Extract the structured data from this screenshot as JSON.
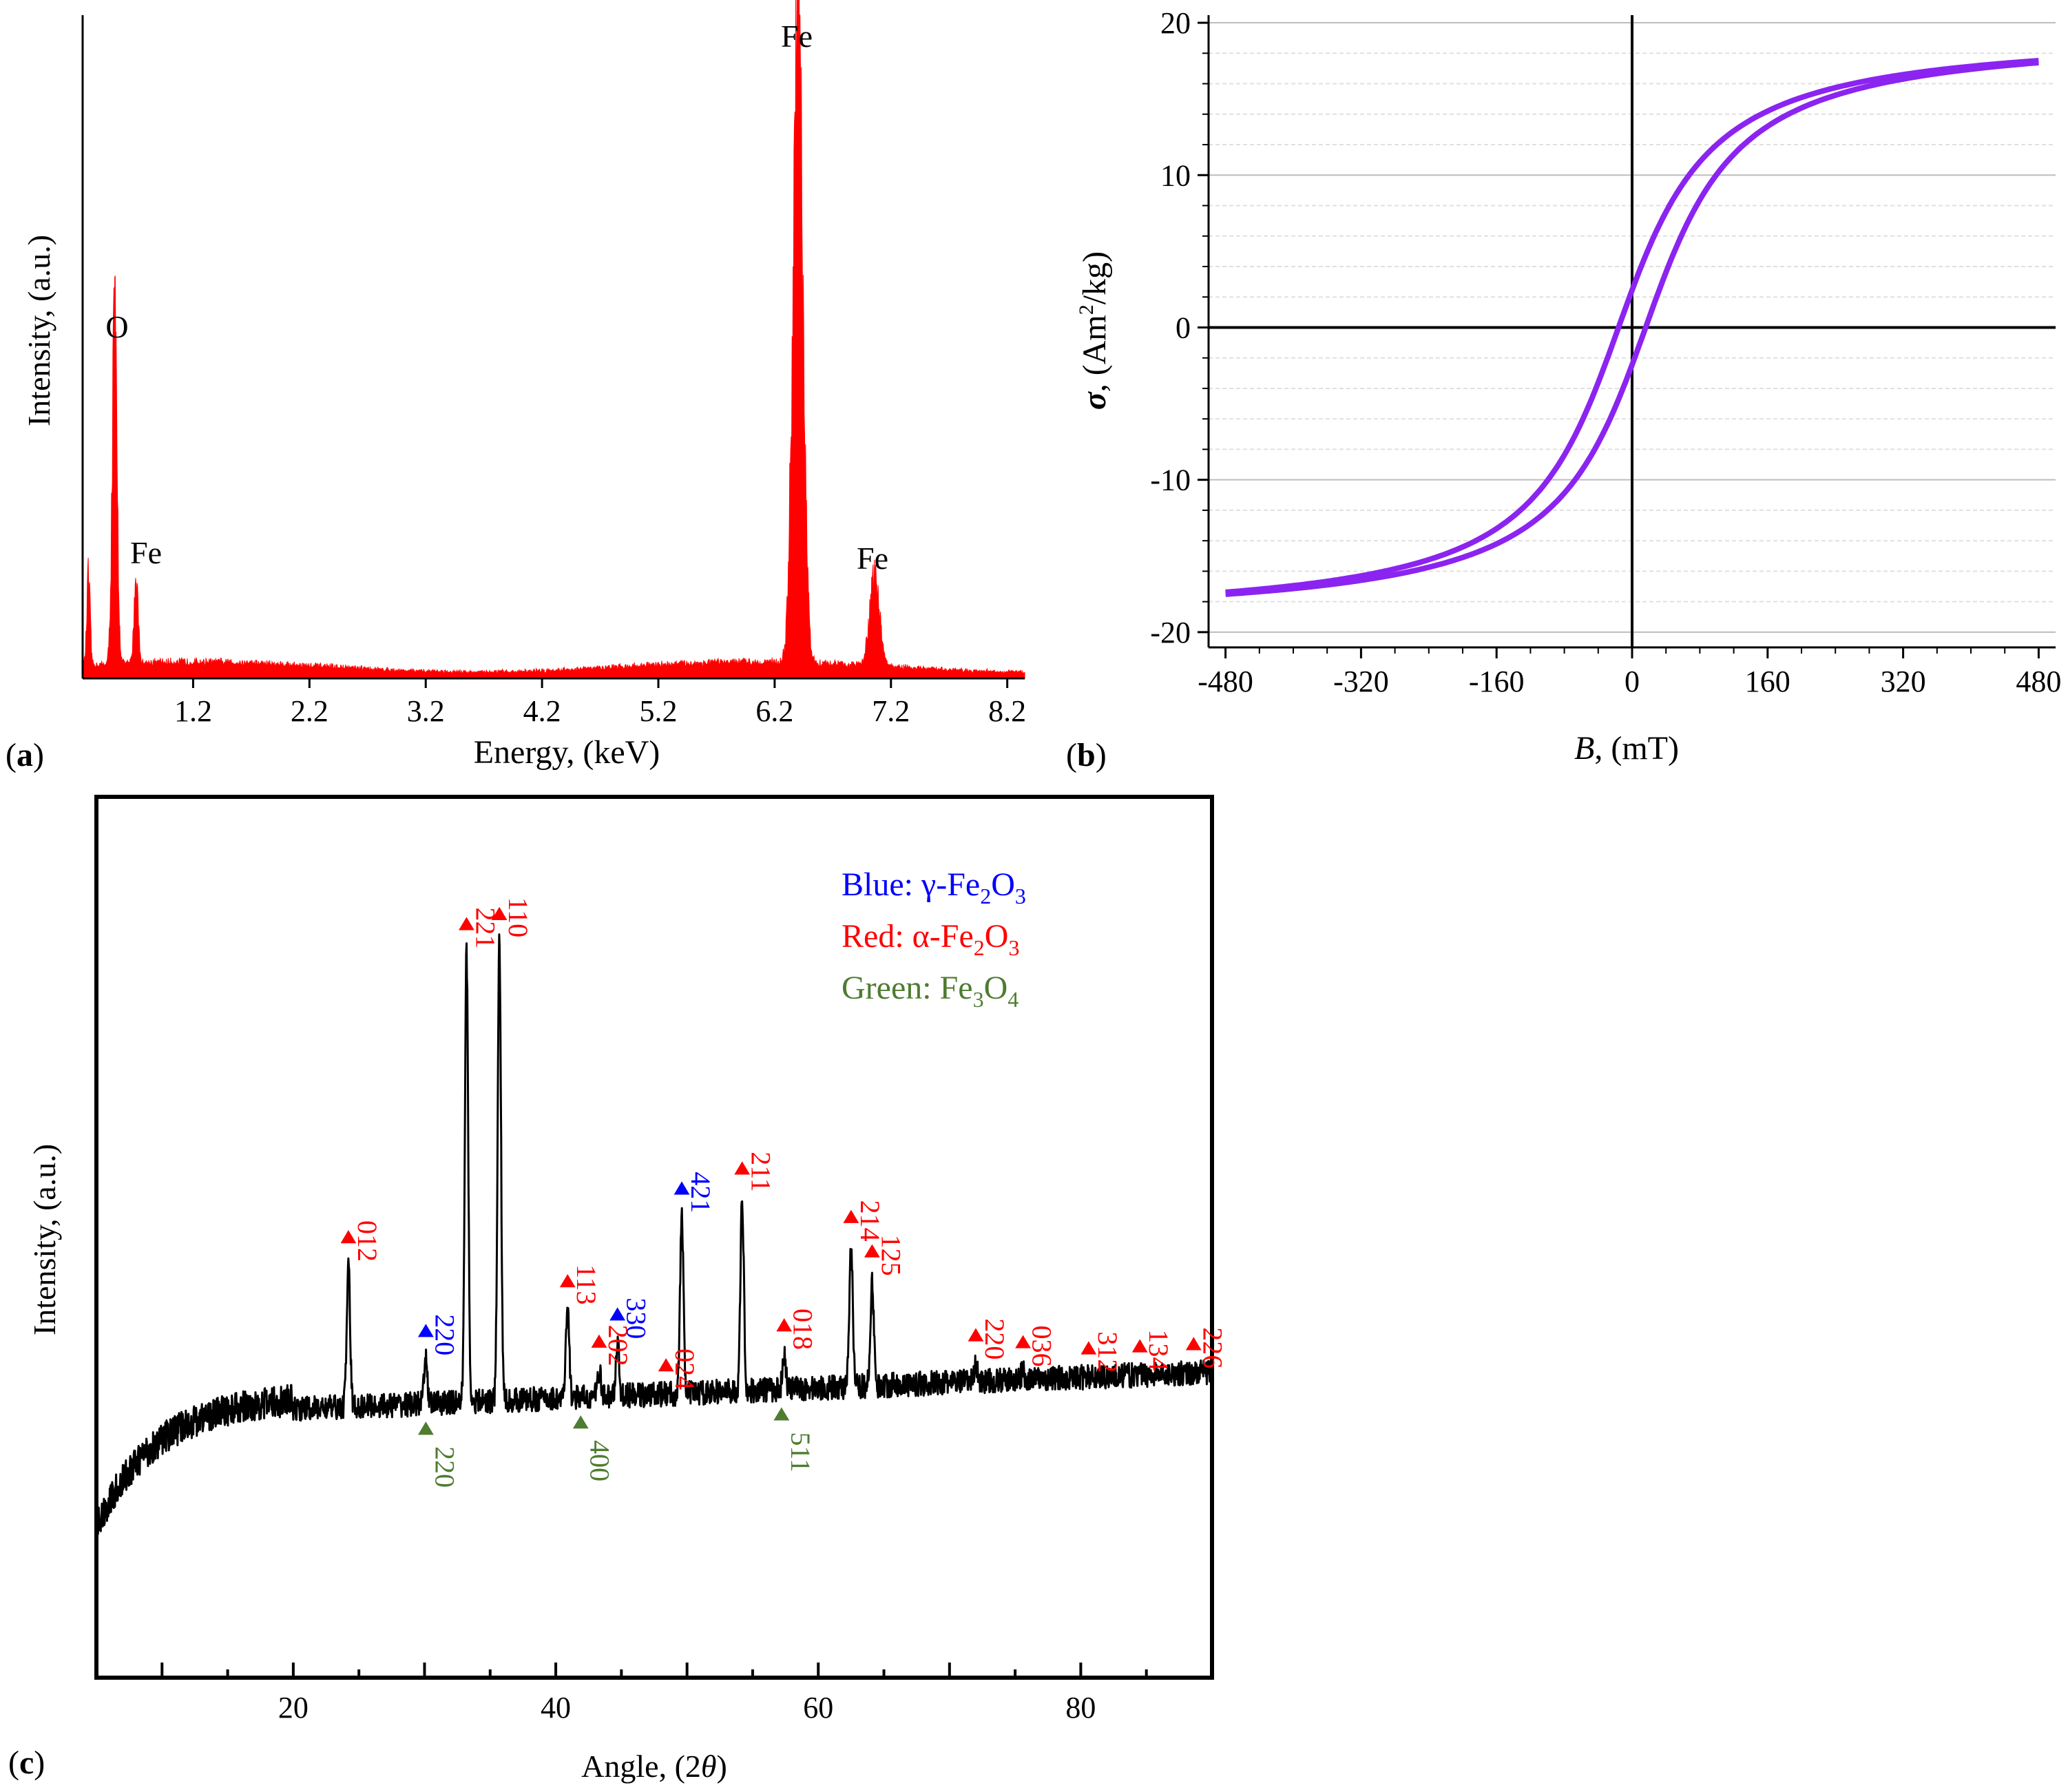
{
  "chart_data": [
    {
      "id": "a",
      "type": "area",
      "panel_label": "(a)",
      "title": "",
      "xlabel": "Energy, (keV)",
      "ylabel": "Intensity, (a.u.)",
      "xlim": [
        0.25,
        8.35
      ],
      "ylim": [
        0,
        1.0
      ],
      "xticks": [
        "1.2",
        "2.2",
        "3.2",
        "4.2",
        "5.2",
        "6.2",
        "7.2",
        "8.2"
      ],
      "xtick_values": [
        1.2,
        2.2,
        3.2,
        4.2,
        5.2,
        6.2,
        7.2,
        8.2
      ],
      "series": [
        {
          "name": "EDS spectrum",
          "color": "#ff0000"
        }
      ],
      "peaks": [
        {
          "label": "O",
          "energy": 0.525,
          "height": 0.5,
          "width": 0.03
        },
        {
          "label": "Fe",
          "energy": 0.71,
          "height": 0.13,
          "width": 0.025
        },
        {
          "label": "Fe",
          "energy": 6.4,
          "height": 0.93,
          "width": 0.06
        },
        {
          "label": "Fe",
          "energy": 7.06,
          "height": 0.13,
          "width": 0.06
        }
      ],
      "edge_peak": {
        "energy": 0.3,
        "height": 0.13,
        "width": 0.02
      },
      "background_level": 0.015,
      "annotations": [
        "O",
        "Fe",
        "Fe",
        "Fe"
      ]
    },
    {
      "id": "b",
      "type": "line",
      "panel_label": "(b)",
      "title": "",
      "xlabel_italic": "B",
      "xlabel_rest": ", (mT)",
      "ylabel_symbol": "σ",
      "ylabel_rest": ", (Am",
      "ylabel_sup": "2",
      "ylabel_end": "/kg)",
      "xlim": [
        -500,
        500
      ],
      "ylim": [
        -21,
        20.5
      ],
      "xticks": [
        "-480",
        "-320",
        "-160",
        "0",
        "160",
        "320",
        "480"
      ],
      "xtick_values": [
        -480,
        -320,
        -160,
        0,
        160,
        320,
        480
      ],
      "yticks": [
        "20",
        "10",
        "0",
        "-10",
        "-20"
      ],
      "ytick_values": [
        20,
        10,
        0,
        -10,
        -20
      ],
      "grid": true,
      "series": [
        {
          "name": "Hysteresis loop",
          "color": "#8b24f0"
        }
      ],
      "saturation_magnetization": 19.5,
      "coercivity_mT": 16,
      "remanence": 5,
      "field_range": [
        -480,
        480
      ]
    },
    {
      "id": "c",
      "type": "line",
      "panel_label": "(c)",
      "title": "",
      "xlabel_text": "Angle, (2",
      "xlabel_theta": "θ",
      "xlabel_close": ")",
      "ylabel": "Intensity, (a.u.)",
      "xlim": [
        5,
        90
      ],
      "ylim": [
        0,
        1.0
      ],
      "xticks": [
        "20",
        "40",
        "60",
        "80"
      ],
      "xtick_values": [
        20,
        40,
        60,
        80
      ],
      "series": [
        {
          "name": "XRD pattern",
          "color": "#000000"
        }
      ],
      "legend": {
        "placement": "top-right",
        "entries": [
          {
            "prefix": "Blue: γ-Fe",
            "sub1": "2",
            "mid": "O",
            "sub2": "3",
            "color": "#0000ff"
          },
          {
            "prefix": "Red: α-Fe",
            "sub1": "2",
            "mid": "O",
            "sub2": "3",
            "color": "#ff0000"
          },
          {
            "prefix": "Green: Fe",
            "sub1": "3",
            "mid": "O",
            "sub2": "4",
            "color": "#4e7c30"
          }
        ]
      },
      "peaks": [
        {
          "two_theta": 24.2,
          "height": 0.16,
          "label": "012",
          "phase": "alpha"
        },
        {
          "two_theta": 30.1,
          "height": 0.05,
          "label": "220",
          "phase": "gamma"
        },
        {
          "two_theta": 33.2,
          "height": 0.51,
          "label": "221",
          "phase": "alpha"
        },
        {
          "two_theta": 35.7,
          "height": 0.52,
          "label": "110",
          "phase": "alpha"
        },
        {
          "two_theta": 40.9,
          "height": 0.1,
          "label": "113",
          "phase": "alpha"
        },
        {
          "two_theta": 43.3,
          "height": 0.03,
          "label": "202",
          "phase": "alpha"
        },
        {
          "two_theta": 44.7,
          "height": 0.06,
          "label": "330",
          "phase": "gamma"
        },
        {
          "two_theta": 48.4,
          "height": 0.0,
          "label": "024",
          "phase": "alpha"
        },
        {
          "two_theta": 49.6,
          "height": 0.2,
          "label": "421",
          "phase": "gamma"
        },
        {
          "two_theta": 54.2,
          "height": 0.22,
          "label": "211",
          "phase": "alpha"
        },
        {
          "two_theta": 57.4,
          "height": 0.04,
          "label": "018",
          "phase": "alpha"
        },
        {
          "two_theta": 62.5,
          "height": 0.16,
          "label": "214",
          "phase": "alpha"
        },
        {
          "two_theta": 64.1,
          "height": 0.12,
          "label": "125",
          "phase": "alpha"
        },
        {
          "two_theta": 72.0,
          "height": 0.02,
          "label": "220",
          "phase": "alpha"
        },
        {
          "two_theta": 75.6,
          "height": 0.01,
          "label": "036",
          "phase": "alpha"
        },
        {
          "two_theta": 80.6,
          "height": 0.0,
          "label": "312",
          "phase": "alpha"
        },
        {
          "two_theta": 84.5,
          "height": 0.0,
          "label": "134",
          "phase": "alpha"
        },
        {
          "two_theta": 88.6,
          "height": 0.0,
          "label": "226",
          "phase": "alpha"
        }
      ],
      "fe3o4_markers": [
        {
          "two_theta": 30.1,
          "label": "220"
        },
        {
          "two_theta": 41.9,
          "label": "400"
        },
        {
          "two_theta": 57.2,
          "label": "511"
        }
      ],
      "phase_colors": {
        "alpha": "#ff0000",
        "gamma": "#0000ff",
        "fe3o4": "#4e7c30"
      }
    }
  ]
}
